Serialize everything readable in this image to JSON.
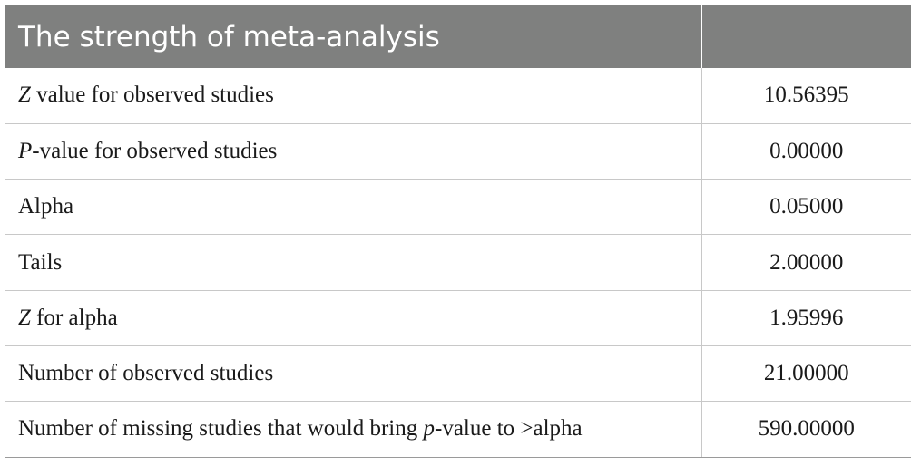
{
  "header": {
    "title": "The strength of meta-analysis",
    "value_header": ""
  },
  "rows": [
    {
      "italic_prefix": "Z",
      "label": " value for observed studies",
      "label_suffix": "",
      "value": "10.56395"
    },
    {
      "italic_prefix": "P",
      "label": "-value for observed studies",
      "label_suffix": "",
      "value": "0.00000"
    },
    {
      "italic_prefix": "",
      "label": "Alpha",
      "label_suffix": "",
      "value": "0.05000"
    },
    {
      "italic_prefix": "",
      "label": "Tails",
      "label_suffix": "",
      "value": "2.00000"
    },
    {
      "italic_prefix": "Z",
      "label": " for alpha",
      "label_suffix": "",
      "value": "1.95996"
    },
    {
      "italic_prefix": "",
      "label": "Number of observed studies",
      "label_suffix": "",
      "value": "21.00000"
    },
    {
      "italic_prefix": "",
      "label": "Number of missing studies that would bring ",
      "label_italic": "p",
      "label_suffix": "-value to >alpha",
      "value": "590.00000"
    }
  ]
}
